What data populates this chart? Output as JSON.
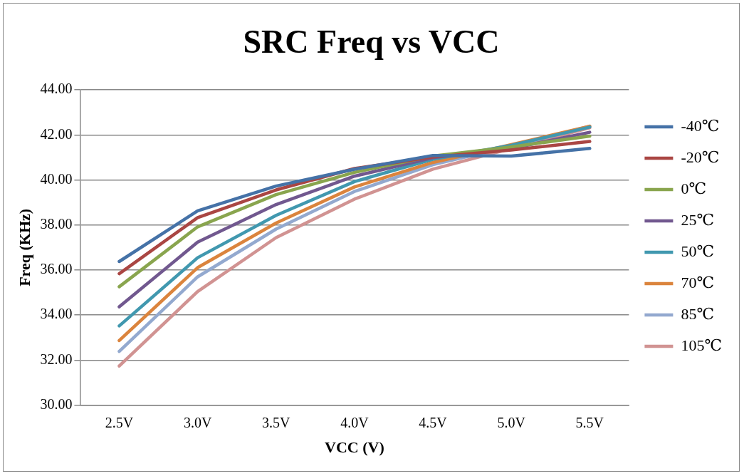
{
  "chart_data": {
    "type": "line",
    "title": "SRC Freq vs VCC",
    "xlabel": "VCC (V)",
    "ylabel": "Freq (KHz)",
    "categories": [
      "2.5V",
      "3.0V",
      "3.5V",
      "4.0V",
      "4.5V",
      "5.0V",
      "5.5V"
    ],
    "ylim": [
      30,
      44
    ],
    "yticks": [
      {
        "value": 30,
        "label": "30.00"
      },
      {
        "value": 32,
        "label": "32.00"
      },
      {
        "value": 34,
        "label": "34.00"
      },
      {
        "value": 36,
        "label": "36.00"
      },
      {
        "value": 38,
        "label": "38.00"
      },
      {
        "value": 40,
        "label": "40.00"
      },
      {
        "value": 42,
        "label": "42.00"
      },
      {
        "value": 44,
        "label": "44.00"
      }
    ],
    "grid": "y",
    "legend": "right",
    "marker": "none",
    "line_style": "solid",
    "series": [
      {
        "name": "-40℃",
        "color": "#4572a7",
        "values": [
          36.38,
          38.63,
          39.73,
          40.48,
          41.09,
          41.06,
          41.4
        ]
      },
      {
        "name": "-20℃",
        "color": "#aa4643",
        "values": [
          35.84,
          38.33,
          39.56,
          40.51,
          41.02,
          41.33,
          41.71
        ]
      },
      {
        "name": "0℃",
        "color": "#89a54e",
        "values": [
          35.26,
          37.92,
          39.35,
          40.34,
          41.06,
          41.47,
          41.95
        ]
      },
      {
        "name": "25℃",
        "color": "#71588f",
        "values": [
          34.37,
          37.24,
          38.91,
          40.17,
          40.99,
          41.4,
          42.12
        ]
      },
      {
        "name": "50℃",
        "color": "#4198af",
        "values": [
          33.52,
          36.55,
          38.43,
          39.93,
          40.92,
          41.54,
          42.35
        ]
      },
      {
        "name": "70℃",
        "color": "#db843d",
        "values": [
          32.87,
          36.11,
          38.09,
          39.69,
          40.78,
          41.57,
          42.39
        ]
      },
      {
        "name": "85℃",
        "color": "#93a9cf",
        "values": [
          32.39,
          35.7,
          37.82,
          39.49,
          40.68,
          41.5,
          42.39
        ]
      },
      {
        "name": "105℃",
        "color": "#d19392",
        "values": [
          31.74,
          35.05,
          37.44,
          39.15,
          40.48,
          41.4,
          42.32
        ]
      }
    ]
  }
}
